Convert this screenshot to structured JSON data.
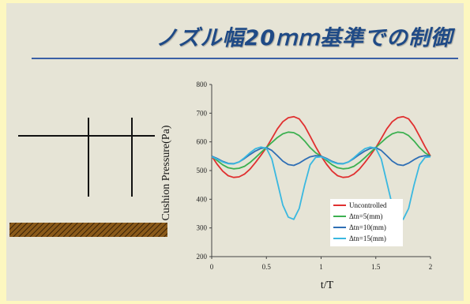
{
  "slide": {
    "title": "ノズル幅20ｍｍ基準での制御"
  },
  "colors": {
    "page_background": "#fdf7c0",
    "slide_background": "#e6e4d6",
    "title_color": "#1f4a86",
    "rule_color": "#3a5fa6"
  },
  "chart_data": {
    "type": "line",
    "xlabel": "t/T",
    "ylabel": "Cushion Pressure(Pa)",
    "xlim": [
      0,
      2
    ],
    "ylim": [
      200,
      800
    ],
    "x_ticks": [
      "0",
      "0.5",
      "1",
      "1.5",
      "2"
    ],
    "y_ticks": [
      "200",
      "300",
      "400",
      "500",
      "600",
      "700",
      "800"
    ],
    "grid": false,
    "legend_position": "bottom-right",
    "series": [
      {
        "name": "Uncontrolled",
        "color": "#e03030",
        "x": [
          0,
          0.05,
          0.1,
          0.15,
          0.2,
          0.25,
          0.3,
          0.35,
          0.4,
          0.45,
          0.5,
          0.55,
          0.6,
          0.65,
          0.7,
          0.75,
          0.8,
          0.85,
          0.9,
          0.95,
          1.0,
          1.05,
          1.1,
          1.15,
          1.2,
          1.25,
          1.3,
          1.35,
          1.4,
          1.45,
          1.5,
          1.55,
          1.6,
          1.65,
          1.7,
          1.75,
          1.8,
          1.85,
          1.9,
          1.95,
          2.0
        ],
        "values": [
          550,
          522,
          498,
          482,
          476,
          478,
          488,
          505,
          528,
          553,
          580,
          612,
          645,
          670,
          684,
          688,
          680,
          655,
          620,
          583,
          550,
          522,
          498,
          482,
          476,
          478,
          488,
          505,
          528,
          553,
          580,
          612,
          645,
          670,
          684,
          688,
          680,
          655,
          620,
          583,
          550
        ]
      },
      {
        "name": "Δtn=5(mm)",
        "color": "#3cb050",
        "x": [
          0,
          0.05,
          0.1,
          0.15,
          0.2,
          0.25,
          0.3,
          0.35,
          0.4,
          0.45,
          0.5,
          0.55,
          0.6,
          0.65,
          0.7,
          0.75,
          0.8,
          0.85,
          0.9,
          0.95,
          1.0,
          1.05,
          1.1,
          1.15,
          1.2,
          1.25,
          1.3,
          1.35,
          1.4,
          1.45,
          1.5,
          1.55,
          1.6,
          1.65,
          1.7,
          1.75,
          1.8,
          1.85,
          1.9,
          1.95,
          2.0
        ],
        "values": [
          550,
          535,
          520,
          510,
          506,
          508,
          515,
          528,
          545,
          563,
          580,
          598,
          615,
          628,
          634,
          632,
          622,
          603,
          580,
          562,
          550,
          535,
          520,
          510,
          506,
          508,
          515,
          528,
          545,
          563,
          580,
          598,
          615,
          628,
          634,
          632,
          622,
          603,
          580,
          562,
          550
        ]
      },
      {
        "name": "Δtn=10(mm)",
        "color": "#2f6fb5",
        "x": [
          0,
          0.05,
          0.1,
          0.15,
          0.2,
          0.25,
          0.3,
          0.35,
          0.4,
          0.45,
          0.5,
          0.55,
          0.6,
          0.65,
          0.7,
          0.75,
          0.8,
          0.85,
          0.9,
          0.95,
          1.0,
          1.05,
          1.1,
          1.15,
          1.2,
          1.25,
          1.3,
          1.35,
          1.4,
          1.45,
          1.5,
          1.55,
          1.6,
          1.65,
          1.7,
          1.75,
          1.8,
          1.85,
          1.9,
          1.95,
          2.0
        ],
        "values": [
          550,
          542,
          532,
          525,
          524,
          530,
          542,
          556,
          568,
          577,
          580,
          570,
          552,
          533,
          521,
          518,
          526,
          538,
          548,
          552,
          550,
          542,
          532,
          525,
          524,
          530,
          542,
          556,
          568,
          577,
          580,
          570,
          552,
          533,
          521,
          518,
          526,
          538,
          548,
          552,
          550
        ]
      },
      {
        "name": "Δtn=15(mm)",
        "color": "#3ab8e0",
        "x": [
          0,
          0.05,
          0.1,
          0.15,
          0.2,
          0.25,
          0.3,
          0.35,
          0.4,
          0.45,
          0.5,
          0.55,
          0.6,
          0.65,
          0.7,
          0.75,
          0.8,
          0.85,
          0.9,
          0.95,
          1.0,
          1.05,
          1.1,
          1.15,
          1.2,
          1.25,
          1.3,
          1.35,
          1.4,
          1.45,
          1.5,
          1.55,
          1.6,
          1.65,
          1.7,
          1.75,
          1.8,
          1.85,
          1.9,
          1.95,
          2.0
        ],
        "values": [
          548,
          540,
          530,
          524,
          523,
          530,
          545,
          562,
          576,
          582,
          578,
          540,
          460,
          380,
          338,
          330,
          368,
          450,
          520,
          546,
          548,
          540,
          530,
          524,
          523,
          530,
          545,
          562,
          576,
          582,
          578,
          540,
          460,
          380,
          338,
          330,
          368,
          450,
          520,
          546,
          548
        ]
      }
    ]
  }
}
